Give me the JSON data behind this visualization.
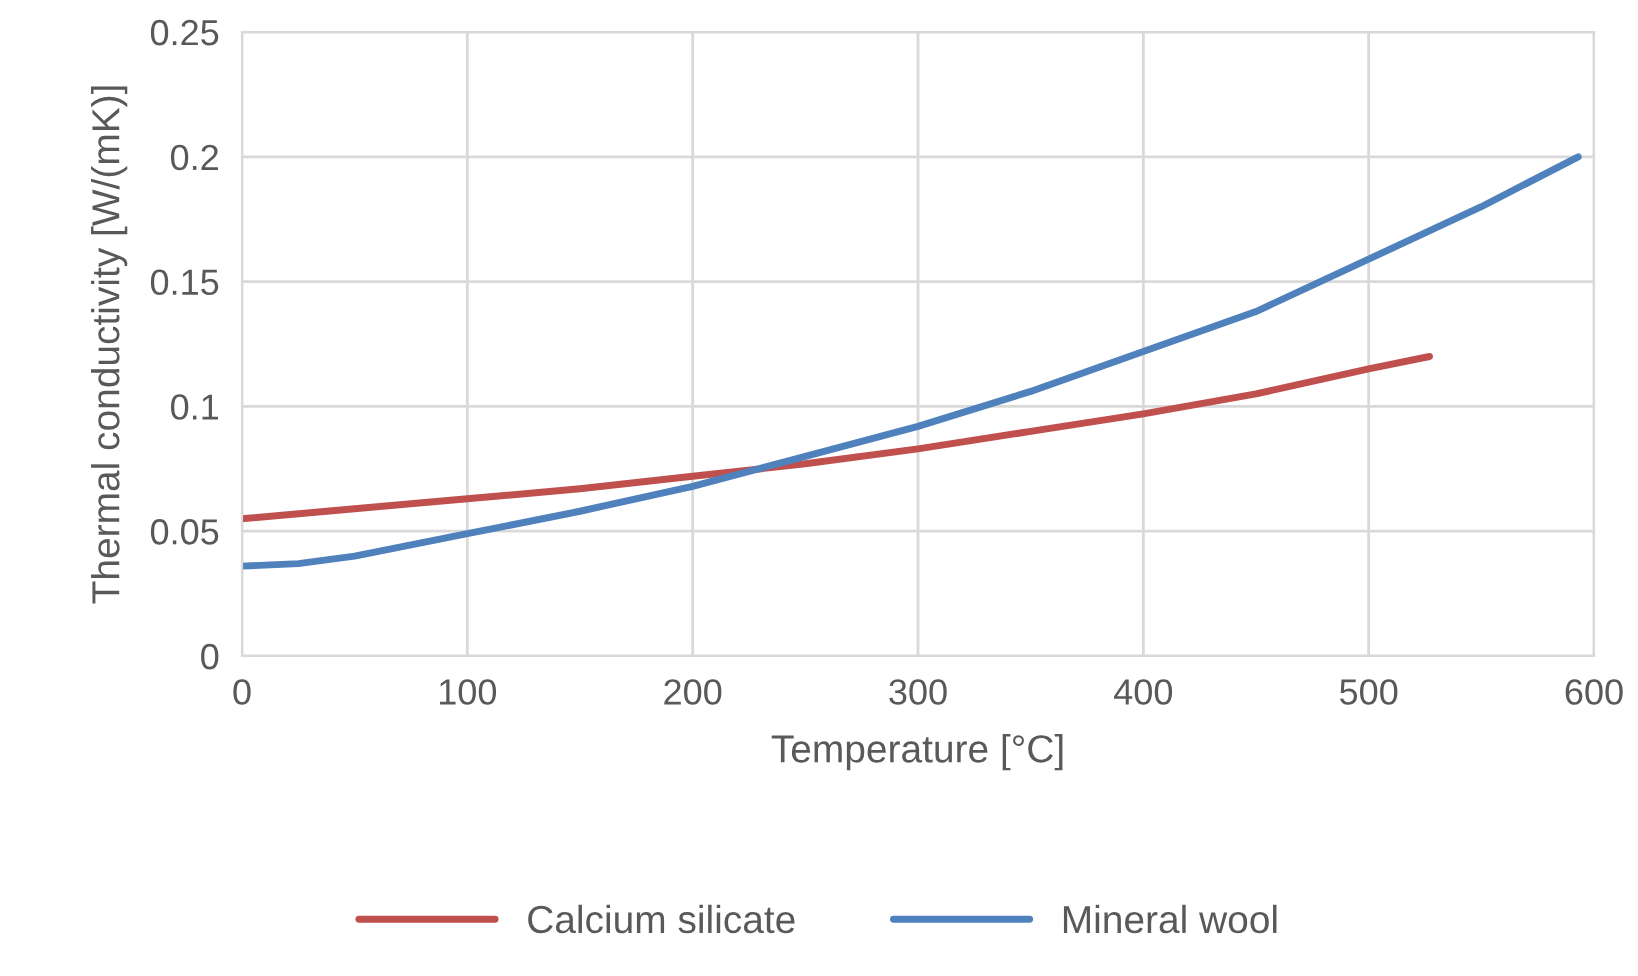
{
  "chart_data": {
    "type": "line",
    "xlabel": "Temperature [°C]",
    "ylabel": "Thermal conductivity [W/(mK)]",
    "xlim": [
      0,
      600
    ],
    "xticks": [
      0,
      100,
      200,
      300,
      400,
      500,
      600
    ],
    "ylim": [
      0,
      0.25
    ],
    "yticks": [
      0,
      0.05,
      0.1,
      0.15,
      0.2,
      0.25
    ],
    "grid": true,
    "legend": "bottom",
    "marker": "none",
    "line_style": "solid",
    "series": [
      {
        "name": "Calcium silicate",
        "color": "#c0504d",
        "x": [
          0,
          50,
          100,
          150,
          200,
          250,
          300,
          350,
          400,
          450,
          500,
          527
        ],
        "values": [
          0.055,
          0.059,
          0.063,
          0.067,
          0.072,
          0.077,
          0.083,
          0.09,
          0.097,
          0.105,
          0.115,
          0.12
        ]
      },
      {
        "name": "Mineral wool",
        "color": "#4f81bd",
        "x": [
          0,
          25,
          50,
          100,
          150,
          200,
          250,
          300,
          350,
          400,
          450,
          500,
          550,
          593
        ],
        "values": [
          0.036,
          0.037,
          0.04,
          0.049,
          0.058,
          0.068,
          0.08,
          0.092,
          0.106,
          0.122,
          0.138,
          0.159,
          0.18,
          0.2
        ]
      }
    ]
  }
}
